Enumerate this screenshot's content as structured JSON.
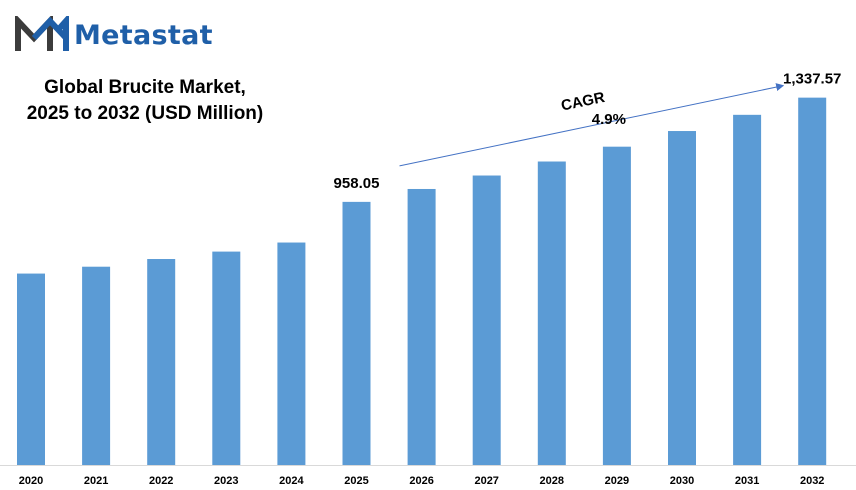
{
  "brand": {
    "name": "Metastat",
    "logo_icon": "metastat-m-logo",
    "colors": {
      "dark": "#3c3c3c",
      "blue": "#1f5fa8"
    }
  },
  "title_lines": [
    "Global Brucite Market,",
    "2025 to 2032 (USD Million)"
  ],
  "chart_data": {
    "type": "bar",
    "categories": [
      "2020",
      "2021",
      "2022",
      "2023",
      "2024",
      "2025",
      "2026",
      "2027",
      "2028",
      "2029",
      "2030",
      "2031",
      "2032"
    ],
    "values": [
      697,
      722,
      750,
      777,
      810,
      958.05,
      1005,
      1054,
      1105,
      1159,
      1216,
      1275,
      1337.57
    ],
    "data_labels": [
      {
        "category": "2025",
        "text": "958.05"
      },
      {
        "category": "2032",
        "text": "1,337.57"
      }
    ],
    "annotation": {
      "label": "CAGR",
      "value": "4.9%",
      "from": "2025",
      "to": "2032"
    },
    "ylim": [
      0,
      1420
    ],
    "bar_color": "#5b9bd5",
    "arrow_color": "#4472c4",
    "grid": false,
    "legend": "none"
  }
}
